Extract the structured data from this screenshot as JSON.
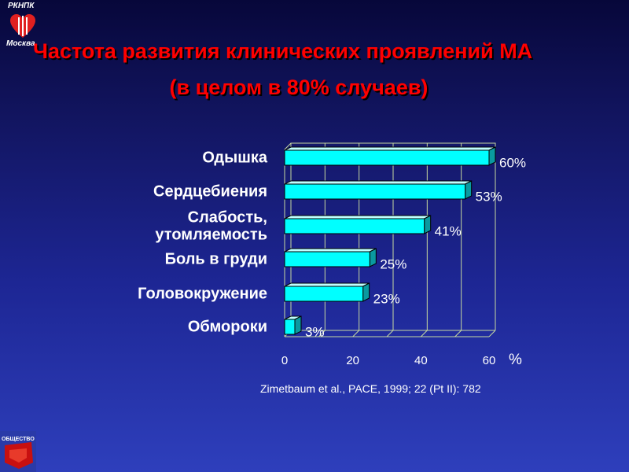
{
  "header": {
    "logo_abbr": "РКНПК",
    "logo_city": "Москва",
    "title": "Частота развития клинических проявлений МА",
    "subtitle": "(в целом в 80% случаев)"
  },
  "colors": {
    "title": "#ff0000",
    "bar_front": "#00ffff",
    "bar_top": "#bfffff",
    "bar_side": "#0a9aa0",
    "grid": "#c7d9a0",
    "text": "#ffffff"
  },
  "chart_data": {
    "type": "bar",
    "orientation": "horizontal",
    "style": "3d",
    "categories": [
      "Одышка",
      "Сердцебиения",
      "Слабость, утомляемость",
      "Боль в груди",
      "Головокружение",
      "Обмороки"
    ],
    "category_lines": [
      [
        "Одышка"
      ],
      [
        "Сердцебиения"
      ],
      [
        "Слабость,",
        "утомляемость"
      ],
      [
        "Боль в груди"
      ],
      [
        "Головокружение"
      ],
      [
        "Обмороки"
      ]
    ],
    "values": [
      60,
      53,
      41,
      25,
      23,
      3
    ],
    "value_labels": [
      "60%",
      "53%",
      "41%",
      "25%",
      "23%",
      "3%"
    ],
    "xlim": [
      0,
      60
    ],
    "xticks": [
      "0",
      "20",
      "40",
      "60"
    ],
    "xlabel": "%",
    "grid": true
  },
  "footer": {
    "source": "Zimetbaum et al., PACE, 1999; 22 (Pt II): 782",
    "logo_text": "ОБЩЕСТВО"
  }
}
